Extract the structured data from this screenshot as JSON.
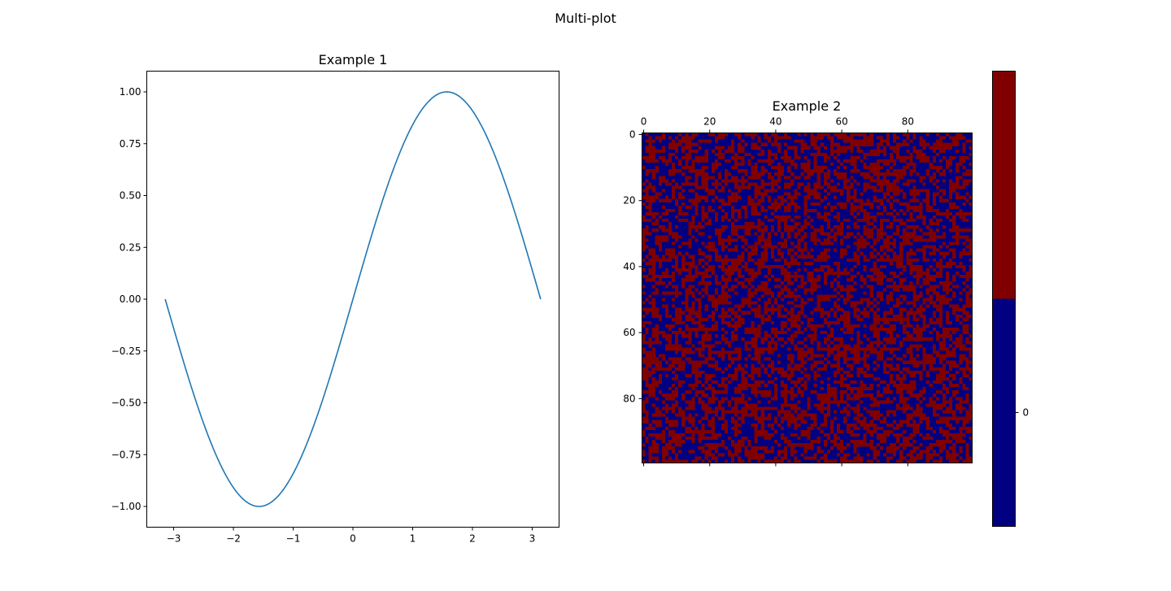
{
  "figure": {
    "suptitle": "Multi-plot"
  },
  "chart_data": [
    {
      "type": "line",
      "title": "Example 1",
      "xlabel": "",
      "ylabel": "",
      "xlim": [
        -3.45,
        3.45
      ],
      "ylim": [
        -1.1,
        1.1
      ],
      "xticks": [
        -3,
        -2,
        -1,
        0,
        1,
        2,
        3
      ],
      "xtick_labels": [
        "−3",
        "−2",
        "−1",
        "0",
        "1",
        "2",
        "3"
      ],
      "yticks": [
        -1.0,
        -0.75,
        -0.5,
        -0.25,
        0.0,
        0.25,
        0.5,
        0.75,
        1.0
      ],
      "ytick_labels": [
        "−1.00",
        "−0.75",
        "−0.50",
        "−0.25",
        "0.00",
        "0.25",
        "0.50",
        "0.75",
        "1.00"
      ],
      "grid": false,
      "series": [
        {
          "function": "sin(x)",
          "x_range": [
            -3.14159,
            3.14159
          ],
          "color": "#1f77b4"
        }
      ]
    },
    {
      "type": "heatmap",
      "title": "Example 2",
      "rows": 100,
      "cols": 100,
      "values_domain": [
        0,
        1
      ],
      "note_values": "random binary matrix (0 or 1)",
      "xticks": [
        0,
        20,
        40,
        60,
        80
      ],
      "xtick_labels": [
        "0",
        "20",
        "40",
        "60",
        "80"
      ],
      "xaxis_position": "top",
      "yticks": [
        0,
        20,
        40,
        60,
        80
      ],
      "ytick_labels": [
        "0",
        "20",
        "40",
        "60",
        "80"
      ],
      "colormap": {
        "low_color": "#000080",
        "high_color": "#800000"
      },
      "colorbar": {
        "ticks": [
          0
        ],
        "tick_labels": [
          "0"
        ],
        "segments": [
          {
            "value": 0,
            "color": "#000080"
          },
          {
            "value": 1,
            "color": "#800000"
          }
        ]
      }
    }
  ]
}
